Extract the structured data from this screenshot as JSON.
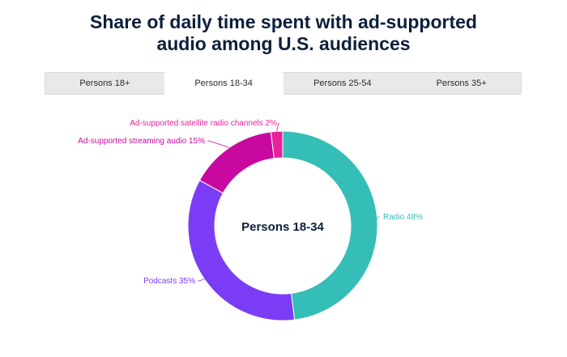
{
  "header": {
    "title_line1": "Share of daily time spent with ad-supported",
    "title_line2": "audio among U.S. audiences"
  },
  "tabs": [
    {
      "label": "Persons 18+",
      "active": false
    },
    {
      "label": "Persons 18-34",
      "active": true
    },
    {
      "label": "Persons 25-54",
      "active": false
    },
    {
      "label": "Persons 35+",
      "active": false
    }
  ],
  "chart_data": {
    "type": "pie",
    "subtype": "donut",
    "center_label": "Persons 18-34",
    "slices": [
      {
        "label": "Radio",
        "value": 48,
        "color": "#35bdb8"
      },
      {
        "label": "Podcasts",
        "value": 35,
        "color": "#7b3cf5"
      },
      {
        "label": "Ad-supported streaming audio",
        "value": 15,
        "color": "#c8089f"
      },
      {
        "label": "Ad-supported satellite radio channels",
        "value": 2,
        "color": "#e4239b"
      }
    ],
    "data_labels": [
      "Radio 48%",
      "Podcasts 35%",
      "Ad-supported streaming audio 15%",
      "Ad-supported satellite radio channels 2%"
    ]
  }
}
